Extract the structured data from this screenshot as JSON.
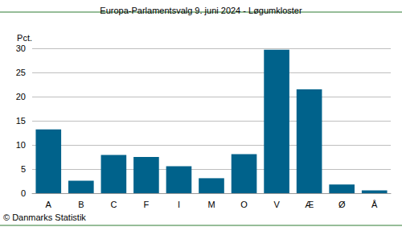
{
  "chart_data": {
    "type": "bar",
    "title": "Europa-Parlamentsvalg 9. juni 2024 - Løgumkloster",
    "y_label": "Pct.",
    "source": "© Danmarks Statistik",
    "categories": [
      "A",
      "B",
      "C",
      "F",
      "I",
      "M",
      "O",
      "V",
      "Æ",
      "Ø",
      "Å"
    ],
    "values": [
      13.2,
      2.6,
      7.9,
      7.5,
      5.6,
      3.1,
      8.1,
      29.7,
      21.5,
      1.8,
      0.6
    ],
    "color": "#00628b",
    "ylim": [
      0,
      30
    ],
    "yticks": [
      0,
      5,
      10,
      15,
      20,
      25,
      30
    ],
    "grid": true
  }
}
